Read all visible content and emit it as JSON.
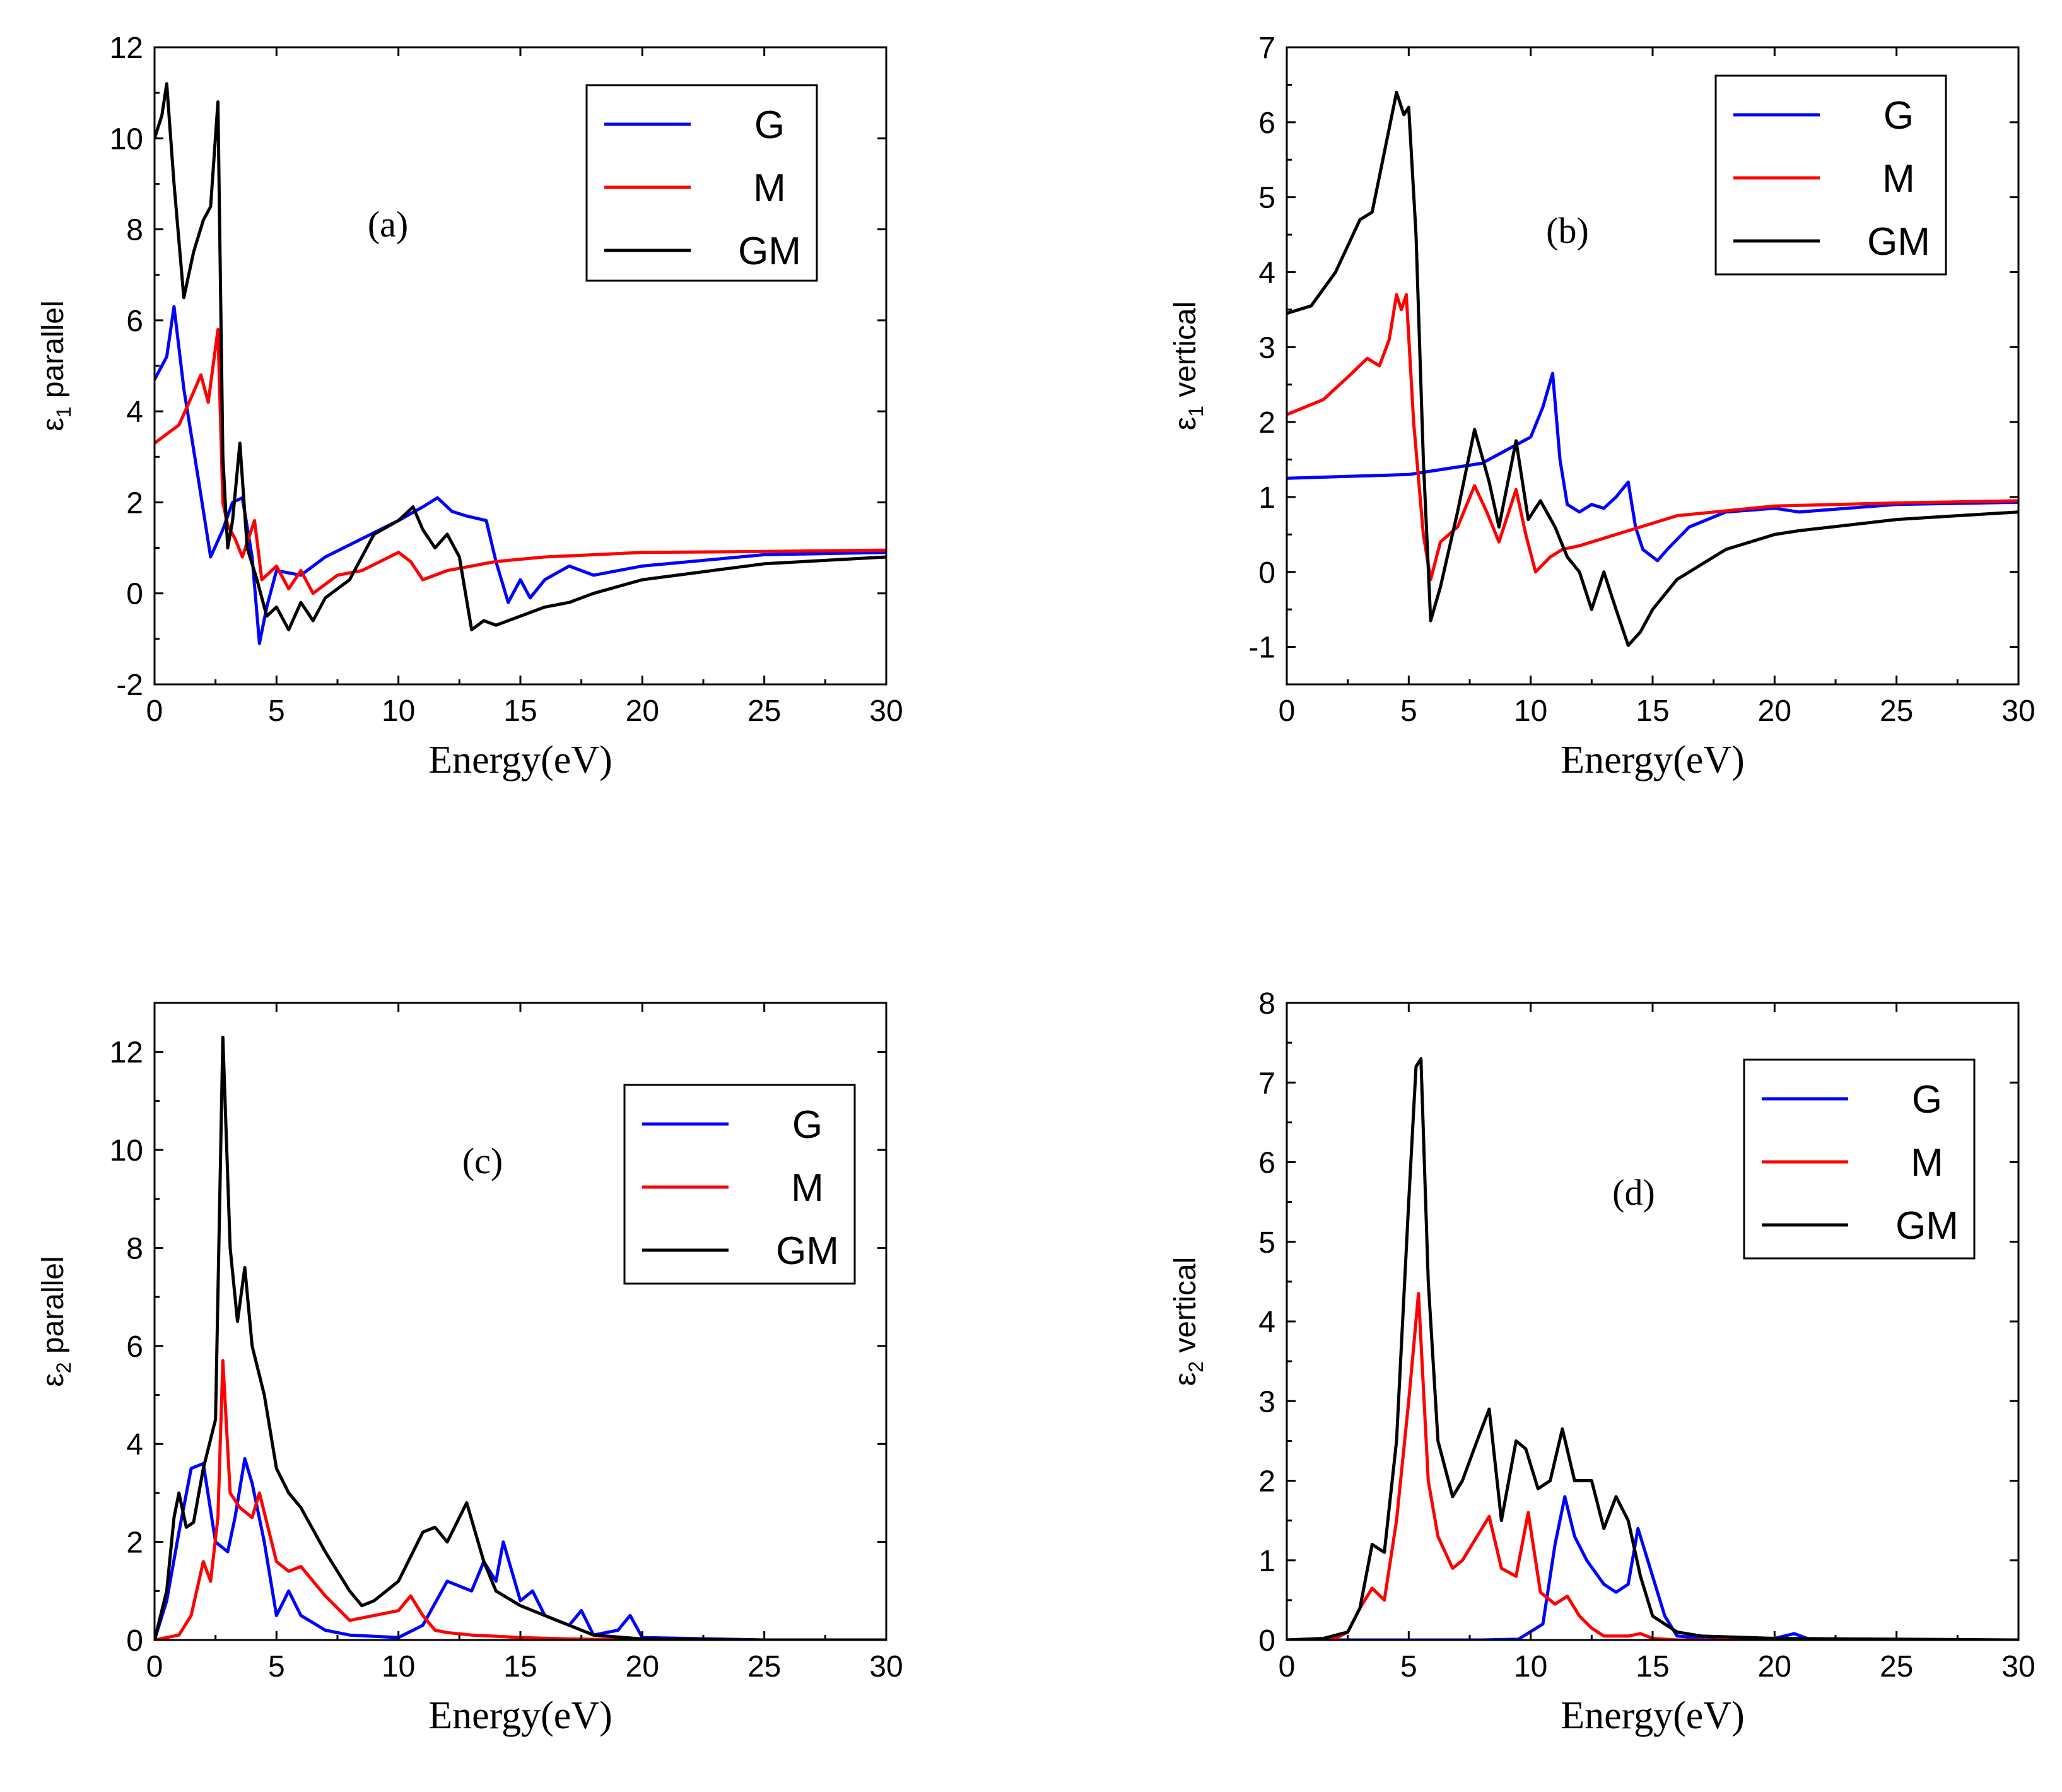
{
  "colors": {
    "G": "#0000ff",
    "M": "#ff0000",
    "GM": "#000000"
  },
  "chart_data": [
    {
      "type": "line",
      "panel_label": "(a)",
      "xlabel": "Energy(eV)",
      "ylabel_symbol": "ε",
      "ylabel_sub": "1",
      "ylabel_text": " parallel",
      "xlim": [
        0,
        30
      ],
      "ylim": [
        -2,
        12
      ],
      "xticks": [
        0,
        5,
        10,
        15,
        20,
        25,
        30
      ],
      "yticks": [
        -2,
        0,
        2,
        4,
        6,
        8,
        10,
        12
      ],
      "legend": [
        "G",
        "M",
        "GM"
      ],
      "legend_position": "top-right",
      "series": [
        {
          "name": "G",
          "x": [
            0,
            0.5,
            0.8,
            1.2,
            1.8,
            2.3,
            2.8,
            3.2,
            3.6,
            4.0,
            4.3,
            4.6,
            5.0,
            6.0,
            7.0,
            8.5,
            10.0,
            11.0,
            11.6,
            12.2,
            12.8,
            13.6,
            14.0,
            14.5,
            15.0,
            15.4,
            16.0,
            17.0,
            18.0,
            20.0,
            25.0,
            30.0
          ],
          "y": [
            4.7,
            5.2,
            6.3,
            4.5,
            2.5,
            0.8,
            1.4,
            2.0,
            2.1,
            0.8,
            -1.1,
            -0.3,
            0.5,
            0.4,
            0.8,
            1.2,
            1.6,
            1.9,
            2.1,
            1.8,
            1.7,
            1.6,
            0.7,
            -0.2,
            0.3,
            -0.1,
            0.3,
            0.6,
            0.4,
            0.6,
            0.85,
            0.9
          ]
        },
        {
          "name": "M",
          "x": [
            0,
            1.0,
            1.5,
            1.9,
            2.2,
            2.4,
            2.6,
            2.8,
            3.0,
            3.3,
            3.6,
            4.1,
            4.4,
            5.0,
            5.5,
            6.0,
            6.5,
            7.5,
            8.5,
            10.0,
            10.5,
            11.0,
            12.0,
            14.0,
            16.0,
            20.0,
            25.0,
            30.0
          ],
          "y": [
            3.3,
            3.7,
            4.3,
            4.8,
            4.2,
            5.0,
            5.8,
            2.0,
            1.5,
            1.2,
            0.8,
            1.6,
            0.3,
            0.6,
            0.1,
            0.5,
            0.0,
            0.4,
            0.5,
            0.9,
            0.7,
            0.3,
            0.5,
            0.7,
            0.8,
            0.9,
            0.92,
            0.95
          ]
        },
        {
          "name": "GM",
          "x": [
            0,
            0.3,
            0.5,
            0.8,
            1.2,
            1.6,
            2.0,
            2.3,
            2.6,
            2.8,
            3.0,
            3.2,
            3.5,
            3.8,
            4.2,
            4.6,
            5.0,
            5.5,
            6.0,
            6.5,
            7.0,
            8.0,
            9.0,
            10.0,
            10.6,
            11.0,
            11.5,
            12.0,
            12.5,
            13.0,
            13.5,
            14.0,
            15.0,
            16.0,
            17.0,
            18.0,
            20.0,
            25.0,
            30.0
          ],
          "y": [
            10.0,
            10.5,
            11.2,
            9.0,
            6.5,
            7.5,
            8.2,
            8.5,
            10.8,
            3.0,
            1.0,
            1.6,
            3.3,
            1.0,
            0.3,
            -0.5,
            -0.3,
            -0.8,
            -0.2,
            -0.6,
            -0.1,
            0.3,
            1.3,
            1.6,
            1.9,
            1.4,
            1.0,
            1.3,
            0.8,
            -0.8,
            -0.6,
            -0.7,
            -0.5,
            -0.3,
            -0.2,
            0.0,
            0.3,
            0.65,
            0.8
          ]
        }
      ]
    },
    {
      "type": "line",
      "panel_label": "(b)",
      "xlabel": "Energy(eV)",
      "ylabel_symbol": "ε",
      "ylabel_sub": "1",
      "ylabel_text": " vertical",
      "xlim": [
        0,
        30
      ],
      "ylim": [
        -1.5,
        7
      ],
      "xticks": [
        0,
        5,
        10,
        15,
        20,
        25,
        30
      ],
      "yticks": [
        -1,
        0,
        1,
        2,
        3,
        4,
        5,
        6,
        7
      ],
      "legend": [
        "G",
        "M",
        "GM"
      ],
      "legend_position": "top-right",
      "series": [
        {
          "name": "G",
          "x": [
            0,
            5.0,
            8.0,
            10.0,
            10.5,
            10.9,
            11.2,
            11.5,
            12.0,
            12.5,
            13.0,
            13.5,
            14.0,
            14.3,
            14.6,
            15.2,
            15.6,
            16.5,
            18.0,
            20.0,
            21.0,
            25.0,
            30.0
          ],
          "y": [
            1.25,
            1.3,
            1.45,
            1.8,
            2.2,
            2.65,
            1.5,
            0.9,
            0.8,
            0.9,
            0.85,
            1.0,
            1.2,
            0.6,
            0.3,
            0.15,
            0.3,
            0.6,
            0.8,
            0.85,
            0.8,
            0.9,
            0.93
          ]
        },
        {
          "name": "M",
          "x": [
            0,
            1.5,
            2.5,
            3.3,
            3.8,
            4.2,
            4.5,
            4.7,
            4.9,
            5.2,
            5.6,
            5.9,
            6.3,
            7.0,
            7.7,
            8.2,
            8.7,
            9.4,
            9.8,
            10.2,
            10.8,
            11.3,
            12.0,
            13.0,
            14.0,
            14.5,
            16.0,
            20.0,
            25.0,
            30.0
          ],
          "y": [
            2.1,
            2.3,
            2.6,
            2.85,
            2.75,
            3.1,
            3.7,
            3.5,
            3.7,
            2.0,
            0.5,
            -0.1,
            0.4,
            0.6,
            1.15,
            0.8,
            0.4,
            1.1,
            0.5,
            0.0,
            0.2,
            0.3,
            0.35,
            0.45,
            0.55,
            0.6,
            0.75,
            0.88,
            0.92,
            0.95
          ]
        },
        {
          "name": "GM",
          "x": [
            0,
            1.0,
            2.0,
            3.0,
            3.5,
            4.0,
            4.5,
            4.8,
            5.0,
            5.3,
            5.6,
            5.9,
            6.3,
            7.0,
            7.7,
            8.3,
            8.7,
            9.4,
            9.9,
            10.4,
            11.0,
            11.5,
            12.0,
            12.5,
            13.0,
            13.5,
            14.0,
            14.5,
            15.0,
            16.0,
            17.0,
            18.0,
            20.0,
            21.0,
            25.0,
            30.0
          ],
          "y": [
            3.45,
            3.55,
            4.0,
            4.7,
            4.8,
            5.6,
            6.4,
            6.1,
            6.2,
            4.5,
            1.5,
            -0.65,
            -0.2,
            0.8,
            1.9,
            1.2,
            0.6,
            1.75,
            0.7,
            0.95,
            0.6,
            0.2,
            0.0,
            -0.5,
            0.0,
            -0.5,
            -0.98,
            -0.8,
            -0.5,
            -0.1,
            0.1,
            0.3,
            0.5,
            0.55,
            0.7,
            0.8
          ]
        }
      ]
    },
    {
      "type": "line",
      "panel_label": "(c)",
      "xlabel": "Energy(eV)",
      "ylabel_symbol": "ε",
      "ylabel_sub": "2",
      "ylabel_text": " parallel",
      "xlim": [
        0,
        30
      ],
      "ylim": [
        0,
        13
      ],
      "xticks": [
        0,
        5,
        10,
        15,
        20,
        25,
        30
      ],
      "yticks": [
        0,
        2,
        4,
        6,
        8,
        10,
        12
      ],
      "legend": [
        "G",
        "M",
        "GM"
      ],
      "legend_position": "top-right",
      "series": [
        {
          "name": "G",
          "x": [
            0,
            0.5,
            1.0,
            1.5,
            2.0,
            2.5,
            3.0,
            3.3,
            3.7,
            4.0,
            4.5,
            5.0,
            5.5,
            6.0,
            7.0,
            8.0,
            10.0,
            11.0,
            12.0,
            13.0,
            13.5,
            14.0,
            14.3,
            15.0,
            15.5,
            16.0,
            17.0,
            17.5,
            18.0,
            19.0,
            19.5,
            20.0,
            25.0,
            30.0
          ],
          "y": [
            0,
            0.8,
            2.2,
            3.5,
            3.6,
            2.0,
            1.8,
            2.5,
            3.7,
            3.2,
            2.0,
            0.5,
            1.0,
            0.5,
            0.2,
            0.1,
            0.05,
            0.3,
            1.2,
            1.0,
            1.6,
            1.2,
            2.0,
            0.8,
            1.0,
            0.5,
            0.3,
            0.6,
            0.1,
            0.2,
            0.5,
            0.05,
            0.0,
            0.0
          ]
        },
        {
          "name": "M",
          "x": [
            0,
            1.0,
            1.5,
            2.0,
            2.3,
            2.6,
            2.8,
            3.1,
            3.5,
            4.0,
            4.3,
            5.0,
            5.5,
            6.0,
            7.0,
            8.0,
            9.0,
            10.0,
            10.5,
            11.0,
            11.5,
            12.0,
            13.0,
            15.0,
            17.0,
            20.0,
            25.0,
            30.0
          ],
          "y": [
            0,
            0.1,
            0.5,
            1.6,
            1.2,
            2.5,
            5.7,
            3.0,
            2.7,
            2.5,
            3.0,
            1.6,
            1.4,
            1.5,
            0.9,
            0.4,
            0.5,
            0.6,
            0.9,
            0.5,
            0.2,
            0.15,
            0.1,
            0.05,
            0.02,
            0.0,
            0.0,
            0.0
          ]
        },
        {
          "name": "GM",
          "x": [
            0,
            0.5,
            0.8,
            1.0,
            1.3,
            1.6,
            2.0,
            2.5,
            2.8,
            3.1,
            3.4,
            3.7,
            4.0,
            4.5,
            5.0,
            5.5,
            6.0,
            7.0,
            8.0,
            8.5,
            9.0,
            10.0,
            11.0,
            11.5,
            12.0,
            12.5,
            12.8,
            13.5,
            14.0,
            15.0,
            16.0,
            17.0,
            18.0,
            20.0,
            25.0,
            30.0
          ],
          "y": [
            0,
            1.0,
            2.5,
            3.0,
            2.3,
            2.4,
            3.5,
            4.5,
            12.3,
            8.0,
            6.5,
            7.6,
            6.0,
            5.0,
            3.5,
            3.0,
            2.7,
            1.8,
            1.0,
            0.7,
            0.8,
            1.2,
            2.2,
            2.3,
            2.0,
            2.5,
            2.8,
            1.6,
            1.0,
            0.7,
            0.5,
            0.3,
            0.1,
            0.02,
            0.0,
            0.0
          ]
        }
      ]
    },
    {
      "type": "line",
      "panel_label": "(d)",
      "xlabel": "Energy(eV)",
      "ylabel_symbol": "ε",
      "ylabel_sub": "2",
      "ylabel_text": " vertical",
      "xlim": [
        0,
        30
      ],
      "ylim": [
        0,
        8
      ],
      "xticks": [
        0,
        5,
        10,
        15,
        20,
        25,
        30
      ],
      "yticks": [
        0,
        1,
        2,
        3,
        4,
        5,
        6,
        7,
        8
      ],
      "legend": [
        "G",
        "M",
        "GM"
      ],
      "legend_position": "top-right",
      "series": [
        {
          "name": "G",
          "x": [
            0,
            8.0,
            9.5,
            10.5,
            11.0,
            11.4,
            11.8,
            12.3,
            13.0,
            13.5,
            14.0,
            14.4,
            15.0,
            15.5,
            16.0,
            18.0,
            20.0,
            20.8,
            21.5,
            25.0,
            30.0
          ],
          "y": [
            0,
            0,
            0.01,
            0.2,
            1.2,
            1.8,
            1.3,
            1.0,
            0.7,
            0.6,
            0.7,
            1.4,
            0.8,
            0.3,
            0.05,
            0.0,
            0.02,
            0.08,
            0.0,
            0.0,
            0.0
          ]
        },
        {
          "name": "M",
          "x": [
            0,
            2.0,
            2.5,
            3.0,
            3.5,
            4.0,
            4.5,
            5.0,
            5.4,
            5.8,
            6.2,
            6.8,
            7.2,
            7.6,
            8.3,
            8.8,
            9.4,
            9.9,
            10.4,
            11.0,
            11.5,
            12.0,
            12.5,
            13.0,
            14.0,
            14.5,
            15.0,
            16.0,
            30.0
          ],
          "y": [
            0,
            0.02,
            0.1,
            0.4,
            0.65,
            0.5,
            1.5,
            3.0,
            4.35,
            2.0,
            1.3,
            0.9,
            1.0,
            1.2,
            1.55,
            0.9,
            0.8,
            1.6,
            0.6,
            0.45,
            0.55,
            0.3,
            0.15,
            0.05,
            0.05,
            0.08,
            0.02,
            0.0,
            0.0
          ]
        },
        {
          "name": "GM",
          "x": [
            0,
            1.5,
            2.5,
            3.0,
            3.5,
            4.0,
            4.5,
            5.0,
            5.3,
            5.5,
            5.8,
            6.2,
            6.8,
            7.2,
            7.8,
            8.3,
            8.8,
            9.4,
            9.8,
            10.3,
            10.8,
            11.3,
            11.8,
            12.5,
            13.0,
            13.5,
            14.0,
            14.5,
            15.0,
            16.0,
            17.0,
            20.0,
            30.0
          ],
          "y": [
            0,
            0.02,
            0.1,
            0.4,
            1.2,
            1.1,
            2.5,
            5.5,
            7.2,
            7.3,
            4.5,
            2.5,
            1.8,
            2.0,
            2.5,
            2.9,
            1.5,
            2.5,
            2.4,
            1.9,
            2.0,
            2.65,
            2.0,
            2.0,
            1.4,
            1.8,
            1.5,
            0.8,
            0.3,
            0.1,
            0.05,
            0.02,
            0.0
          ]
        }
      ]
    }
  ]
}
